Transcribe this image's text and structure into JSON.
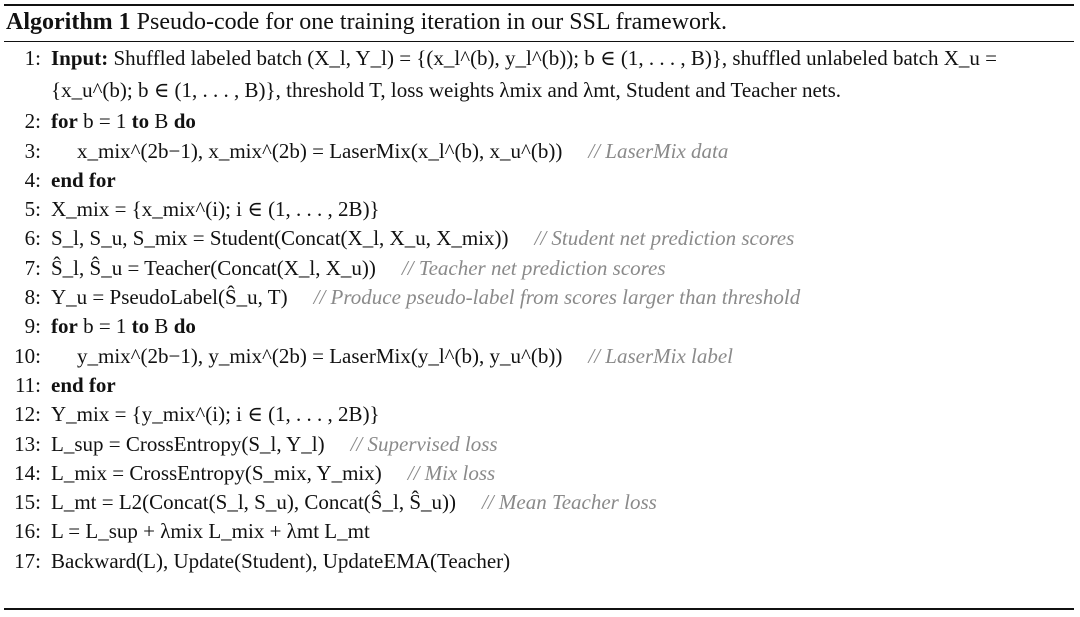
{
  "algorithm": {
    "label": "Algorithm 1",
    "caption": "Pseudo-code for one training iteration in our SSL framework."
  },
  "lines": [
    {
      "num": "1:",
      "text": "Input: Shuffled labeled batch (X_l, Y_l) = {(x_l^(b), y_l^(b)); b ∈ (1, . . . , B)}, shuffled unlabeled batch X_u =",
      "comment": ""
    },
    {
      "num": "",
      "text": "{x_u^(b); b ∈ (1, . . . , B)}, threshold T, loss weights λmix and λmt, Student and Teacher nets.",
      "comment": ""
    },
    {
      "num": "2:",
      "text": "for b = 1 to B do",
      "comment": ""
    },
    {
      "num": "3:",
      "text": "x_mix^(2b−1), x_mix^(2b) = LaserMix(x_l^(b), x_u^(b))",
      "comment": "// LaserMix data"
    },
    {
      "num": "4:",
      "text": "end for",
      "comment": ""
    },
    {
      "num": "5:",
      "text": "X_mix = {x_mix^(i); i ∈ (1, . . . , 2B)}",
      "comment": ""
    },
    {
      "num": "6:",
      "text": "S_l, S_u, S_mix = Student(Concat(X_l, X_u, X_mix))",
      "comment": "// Student net prediction scores"
    },
    {
      "num": "7:",
      "text": "Ŝ_l, Ŝ_u = Teacher(Concat(X_l, X_u))",
      "comment": "// Teacher net prediction scores"
    },
    {
      "num": "8:",
      "text": "Y_u = PseudoLabel(Ŝ_u, T)",
      "comment": "// Produce pseudo-label from scores larger than threshold"
    },
    {
      "num": "9:",
      "text": "for b = 1 to B do",
      "comment": ""
    },
    {
      "num": "10:",
      "text": "y_mix^(2b−1), y_mix^(2b) = LaserMix(y_l^(b), y_u^(b))",
      "comment": "// LaserMix label"
    },
    {
      "num": "11:",
      "text": "end for",
      "comment": ""
    },
    {
      "num": "12:",
      "text": "Y_mix = {y_mix^(i); i ∈ (1, . . . , 2B)}",
      "comment": ""
    },
    {
      "num": "13:",
      "text": "L_sup = CrossEntropy(S_l, Y_l)",
      "comment": "// Supervised loss"
    },
    {
      "num": "14:",
      "text": "L_mix = CrossEntropy(S_mix, Y_mix)",
      "comment": "// Mix loss"
    },
    {
      "num": "15:",
      "text": "L_mt = L2(Concat(S_l, S_u), Concat(Ŝ_l, Ŝ_u))",
      "comment": "// Mean Teacher loss"
    },
    {
      "num": "16:",
      "text": "L = L_sup + λmix L_mix + λmt L_mt",
      "comment": ""
    },
    {
      "num": "17:",
      "text": "Backward(L), Update(Student), UpdateEMA(Teacher)",
      "comment": ""
    }
  ]
}
